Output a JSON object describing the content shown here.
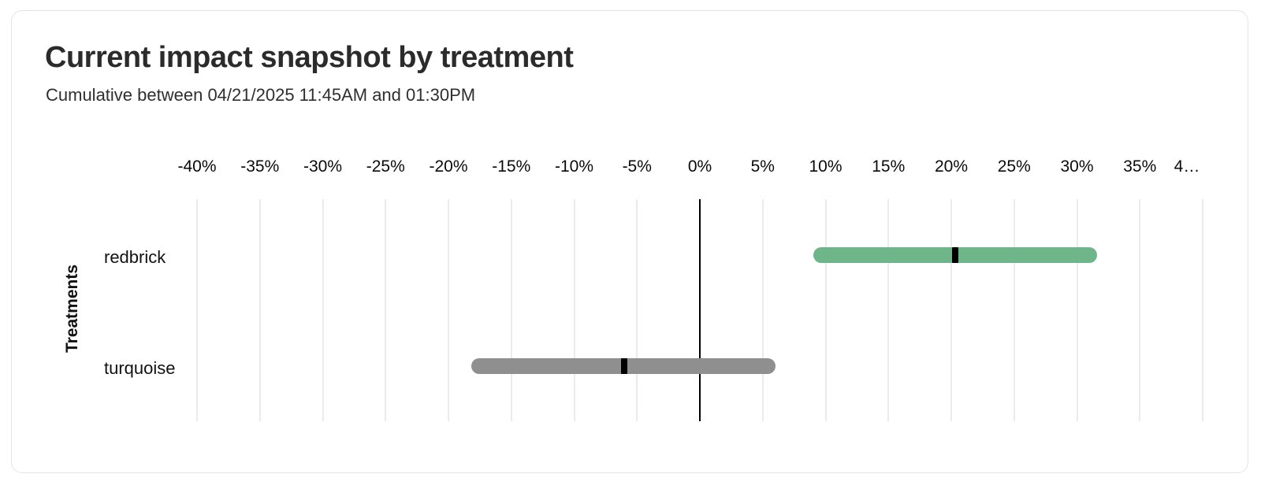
{
  "card": {
    "title": "Current impact snapshot by treatment",
    "subtitle": "Cumulative between 04/21/2025 11:45AM and 01:30PM"
  },
  "chart_data": {
    "type": "bar",
    "variant": "horizontal-interval-bars-with-point-markers",
    "title": "Current impact snapshot by treatment",
    "subtitle": "Cumulative between 04/21/2025 11:45AM and 01:30PM",
    "xlabel": "",
    "ylabel": "Treatments",
    "unit": "%",
    "grid": true,
    "legend": false,
    "axis": {
      "min": -40,
      "max": 40,
      "step": 5,
      "tick_labels": [
        "-40%",
        "-35%",
        "-30%",
        "-25%",
        "-20%",
        "-15%",
        "-10%",
        "-5%",
        "0%",
        "5%",
        "10%",
        "15%",
        "20%",
        "25%",
        "30%",
        "35%",
        "4…"
      ]
    },
    "categories": [
      "redbrick",
      "turquoise"
    ],
    "series": [
      {
        "name": "redbrick",
        "low": 9.0,
        "mid": 20.3,
        "high": 31.6,
        "color": "#6eb58a"
      },
      {
        "name": "turquoise",
        "low": -18.2,
        "mid": -6.0,
        "high": 6.0,
        "color": "#8f8f8f"
      }
    ],
    "marker_color": "#000000",
    "zero_line_color": "#000000",
    "grid_color": "#ebebeb"
  }
}
